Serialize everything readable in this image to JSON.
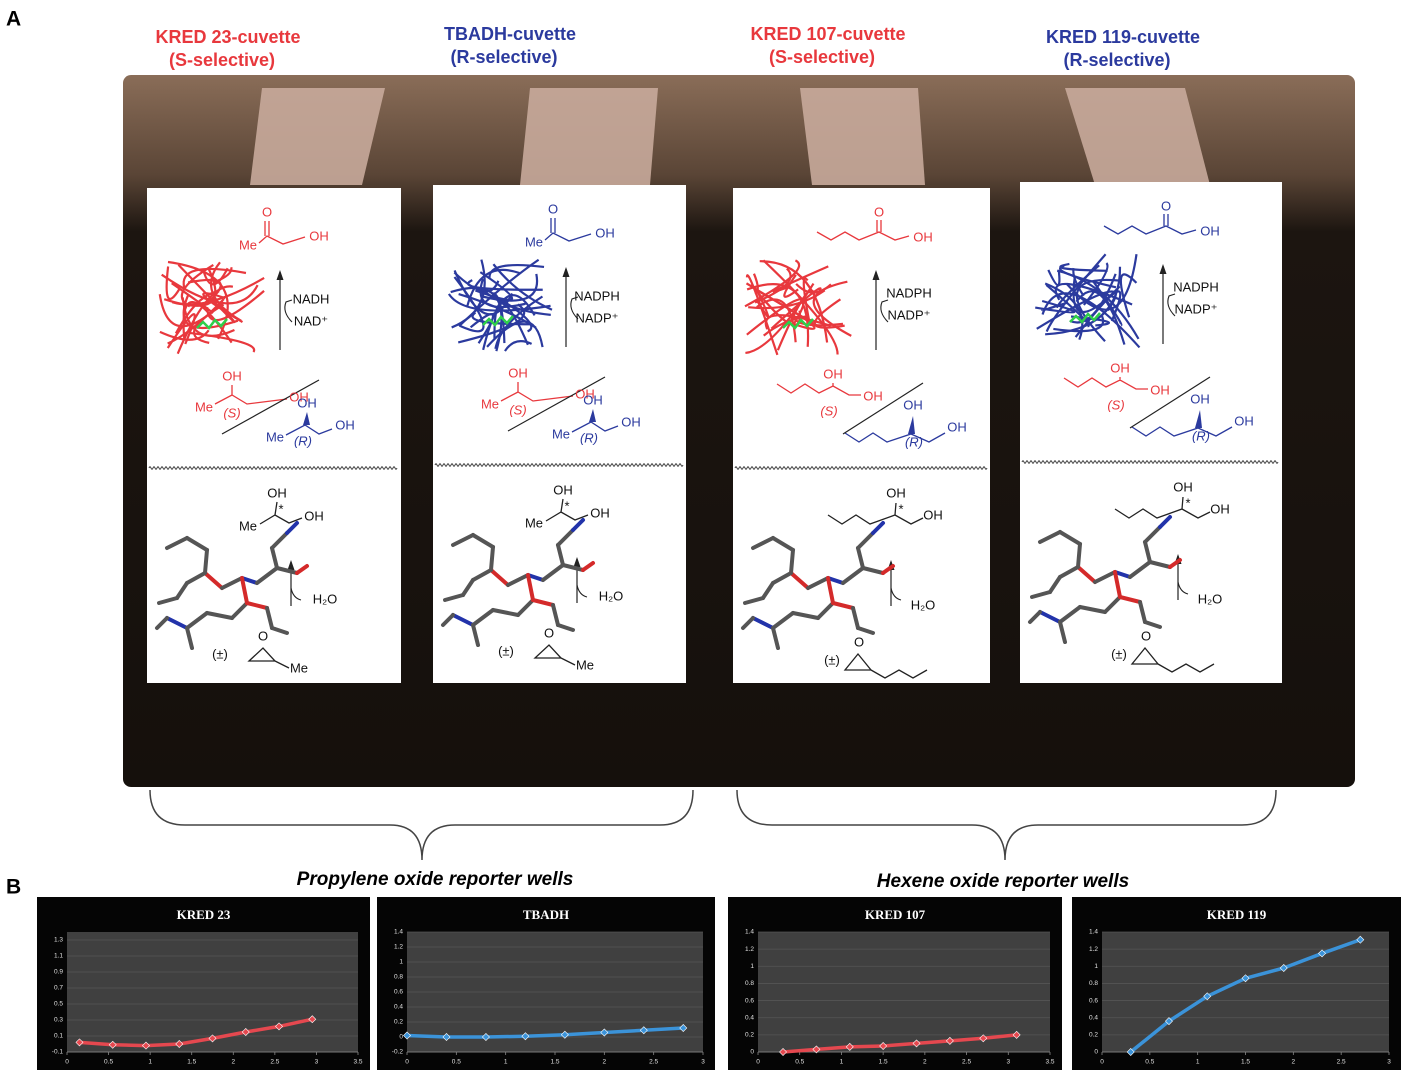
{
  "panel_a": {
    "label": "A",
    "cuvettes": [
      {
        "name": "KRED 23-cuvette",
        "selectivity": "(S-selective)",
        "color": "#e8383d",
        "labels": {
          "ketone_o": "O",
          "ketone_me": "Me",
          "ketone_oh": "OH",
          "cofactor_in": "NADH",
          "cofactor_out": "NAD⁺",
          "s_oh": "OH",
          "s_me": "Me",
          "s_label": "(S)",
          "s_oh2": "OH",
          "r_oh": "OH",
          "r_me": "Me",
          "r_label": "(R)",
          "r_oh2": "OH",
          "diol_oh": "OH",
          "diol_star": "*",
          "diol_me": "Me",
          "diol_oh2": "OH",
          "water": "H₂O",
          "racemic": "(±)",
          "epoxide_o": "O",
          "epoxide_me": "Me"
        }
      },
      {
        "name": "TBADH-cuvette",
        "selectivity": "(R-selective)",
        "color": "#2b3a9e",
        "labels": {
          "ketone_o": "O",
          "ketone_me": "Me",
          "ketone_oh": "OH",
          "cofactor_in": "NADPH",
          "cofactor_out": "NADP⁺",
          "s_oh": "OH",
          "s_me": "Me",
          "s_label": "(S)",
          "s_oh2": "OH",
          "r_oh": "OH",
          "r_me": "Me",
          "r_label": "(R)",
          "r_oh2": "OH",
          "diol_oh": "OH",
          "diol_star": "*",
          "diol_me": "Me",
          "diol_oh2": "OH",
          "water": "H₂O",
          "racemic": "(±)",
          "epoxide_o": "O",
          "epoxide_me": "Me"
        }
      },
      {
        "name": "KRED 107-cuvette",
        "selectivity": "(S-selective)",
        "color": "#e8383d",
        "labels": {
          "ketone_o": "O",
          "ketone_oh": "OH",
          "cofactor_in": "NADPH",
          "cofactor_out": "NADP⁺",
          "s_oh": "OH",
          "s_label": "(S)",
          "s_oh2": "OH",
          "r_oh": "OH",
          "r_label": "(R)",
          "r_oh2": "OH",
          "diol_oh": "OH",
          "diol_star": "*",
          "diol_oh2": "OH",
          "water": "H₂O",
          "racemic": "(±)",
          "epoxide_o": "O"
        }
      },
      {
        "name": "KRED 119-cuvette",
        "selectivity": "(R-selective)",
        "color": "#2b3a9e",
        "labels": {
          "ketone_o": "O",
          "ketone_oh": "OH",
          "cofactor_in": "NADPH",
          "cofactor_out": "NADP⁺",
          "s_oh": "OH",
          "s_label": "(S)",
          "s_oh2": "OH",
          "r_oh": "OH",
          "r_label": "(R)",
          "r_oh2": "OH",
          "diol_oh": "OH",
          "diol_star": "*",
          "diol_oh2": "OH",
          "water": "H₂O",
          "racemic": "(±)",
          "epoxide_o": "O"
        }
      }
    ],
    "wells": [
      "Propylene oxide reporter wells",
      "Hexene oxide reporter wells"
    ]
  },
  "panel_b": {
    "label": "B"
  },
  "chart_data": [
    {
      "type": "line",
      "title": "KRED 23",
      "color": "#e5484f",
      "x": [
        0.15,
        0.55,
        0.95,
        1.35,
        1.75,
        2.15,
        2.55,
        2.95
      ],
      "values": [
        0.02,
        -0.01,
        -0.02,
        0.0,
        0.07,
        0.15,
        0.22,
        0.31
      ],
      "xlim": [
        0,
        3.5
      ],
      "xticks": [
        0,
        0.5,
        1,
        1.5,
        2,
        2.5,
        3,
        3.5
      ],
      "ylim": [
        -0.1,
        1.4
      ],
      "yticks": [
        -0.1,
        0.1,
        0.3,
        0.5,
        0.7,
        0.9,
        1.1,
        1.3
      ],
      "grid": true
    },
    {
      "type": "line",
      "title": "TBADH",
      "color": "#3b93d9",
      "x": [
        0,
        0.4,
        0.8,
        1.2,
        1.6,
        2.0,
        2.4,
        2.8
      ],
      "values": [
        0.02,
        0.0,
        0.0,
        0.01,
        0.03,
        0.06,
        0.09,
        0.12
      ],
      "xlim": [
        0,
        3
      ],
      "xticks": [
        0,
        0.5,
        1,
        1.5,
        2,
        2.5,
        3
      ],
      "ylim": [
        -0.2,
        1.4
      ],
      "yticks": [
        -0.2,
        0,
        0.2,
        0.4,
        0.6,
        0.8,
        1,
        1.2,
        1.4
      ],
      "grid": true
    },
    {
      "type": "line",
      "title": "KRED 107",
      "color": "#e5484f",
      "x": [
        0.3,
        0.7,
        1.1,
        1.5,
        1.9,
        2.3,
        2.7,
        3.1
      ],
      "values": [
        0.0,
        0.03,
        0.06,
        0.07,
        0.1,
        0.13,
        0.16,
        0.2
      ],
      "xlim": [
        0,
        3.5
      ],
      "xticks": [
        0,
        0.5,
        1,
        1.5,
        2,
        2.5,
        3,
        3.5
      ],
      "ylim": [
        0,
        1.4
      ],
      "yticks": [
        0,
        0.2,
        0.4,
        0.6,
        0.8,
        1,
        1.2,
        1.4
      ],
      "grid": true
    },
    {
      "type": "line",
      "title": "KRED 119",
      "color": "#3b93d9",
      "x": [
        0.3,
        0.7,
        1.1,
        1.5,
        1.9,
        2.3,
        2.7
      ],
      "values": [
        0.0,
        0.36,
        0.65,
        0.86,
        0.98,
        1.15,
        1.31
      ],
      "xlim": [
        0,
        3
      ],
      "xticks": [
        0,
        0.5,
        1,
        1.5,
        2,
        2.5,
        3
      ],
      "ylim": [
        0,
        1.4
      ],
      "yticks": [
        0,
        0.2,
        0.4,
        0.6,
        0.8,
        1,
        1.2,
        1.4
      ],
      "grid": true
    }
  ]
}
